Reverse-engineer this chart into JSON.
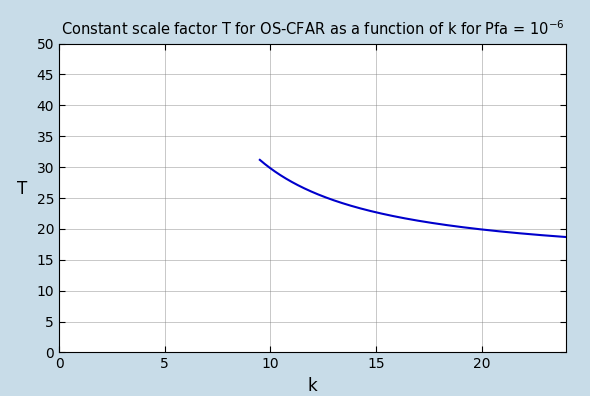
{
  "title_latex": "Constant scale factor T for OS-CFAR as a function of k for Pfa = $10^{-6}$",
  "xlabel": "k",
  "ylabel": "T",
  "xlim": [
    0,
    24
  ],
  "ylim": [
    0,
    50
  ],
  "xticks": [
    0,
    5,
    10,
    15,
    20
  ],
  "yticks": [
    0,
    5,
    10,
    15,
    20,
    25,
    30,
    35,
    40,
    45,
    50
  ],
  "line_color": "#0000CC",
  "Pfa": 1e-06,
  "k_start": 9.5,
  "k_end": 24,
  "background_color": "#ffffff",
  "outer_background": "#c8dce8"
}
